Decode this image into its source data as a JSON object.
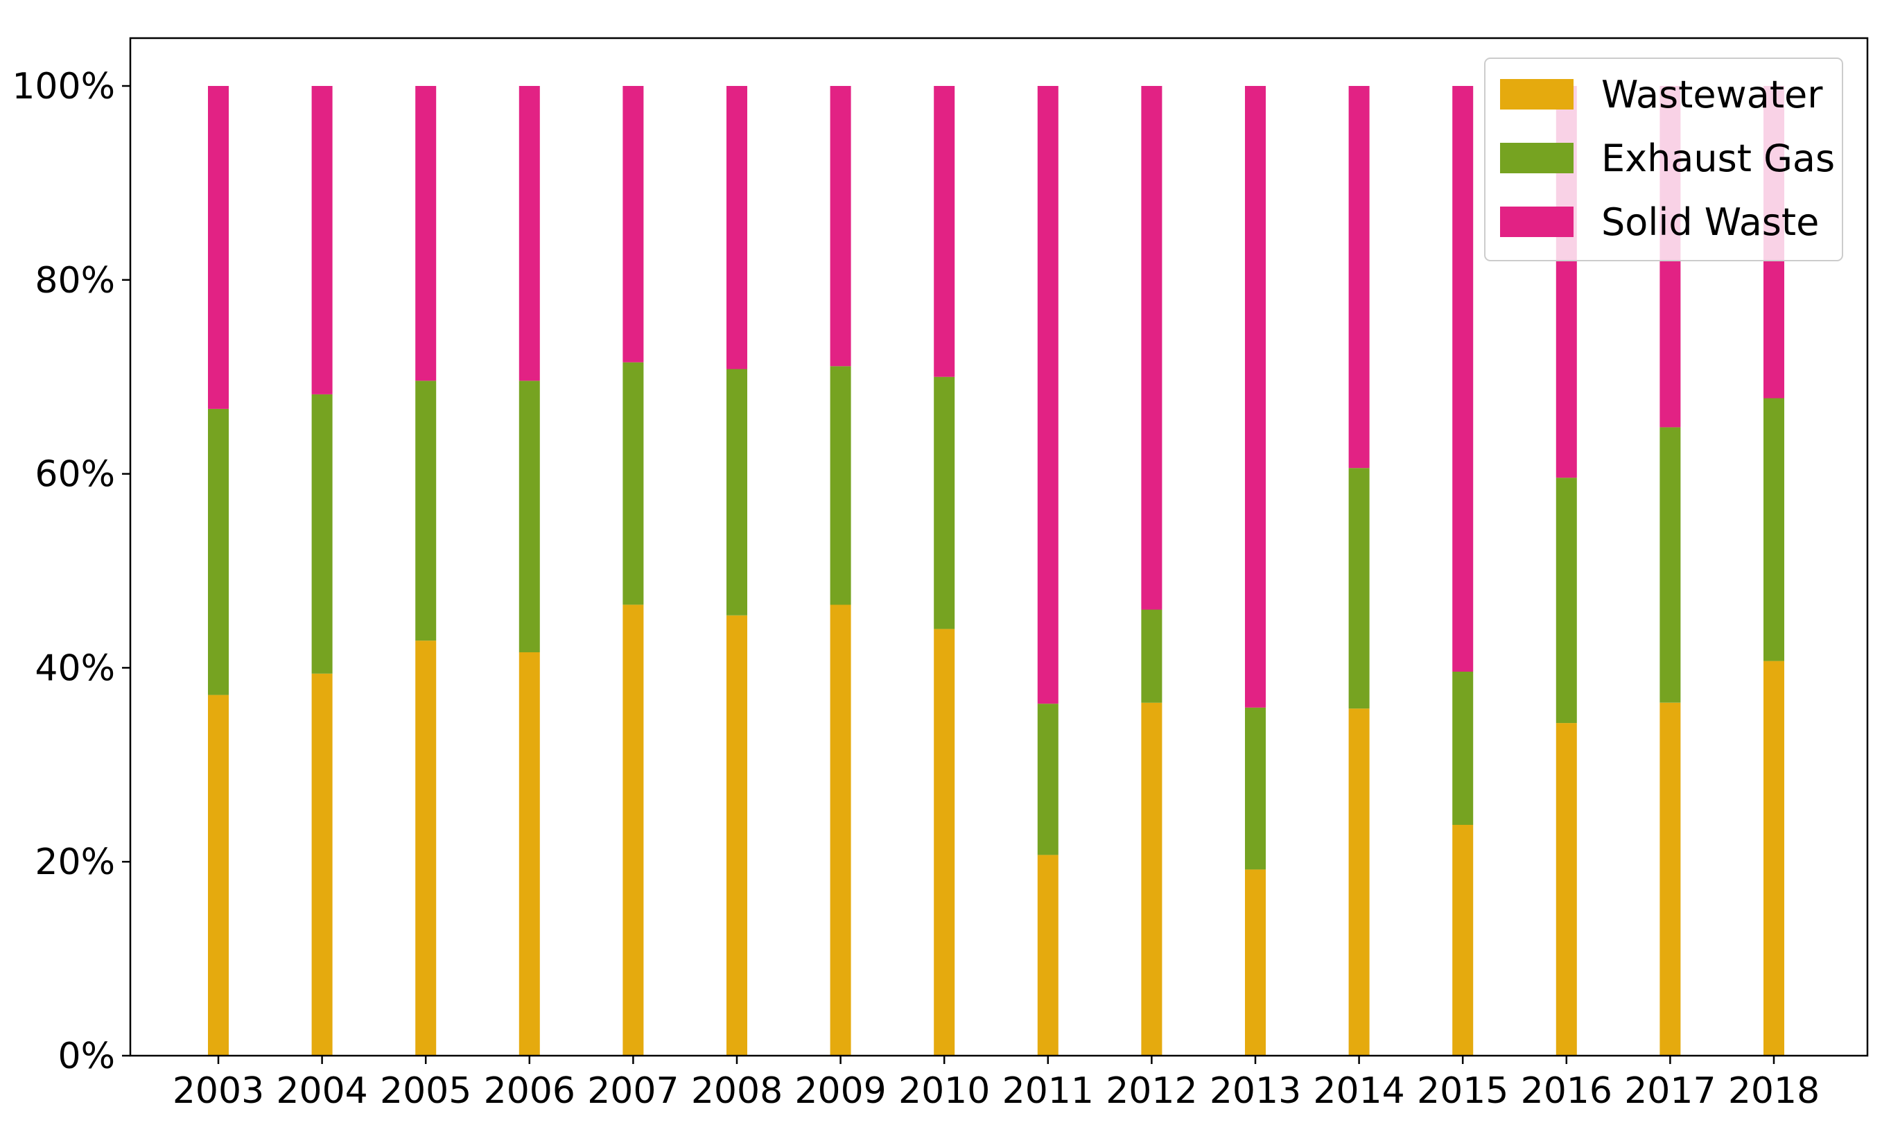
{
  "chart_data": {
    "type": "bar",
    "stacked": true,
    "normalized": true,
    "categories": [
      "2003",
      "2004",
      "2005",
      "2006",
      "2007",
      "2008",
      "2009",
      "2010",
      "2011",
      "2012",
      "2013",
      "2014",
      "2015",
      "2016",
      "2017",
      "2018"
    ],
    "series": [
      {
        "name": "Wastewater",
        "color": "#E5AA0E",
        "values": [
          37.2,
          39.4,
          42.8,
          41.6,
          46.5,
          45.4,
          46.5,
          44.0,
          20.7,
          36.4,
          19.2,
          35.8,
          23.8,
          34.3,
          36.4,
          40.7
        ]
      },
      {
        "name": "Exhaust Gas",
        "color": "#76A321",
        "values": [
          29.5,
          28.8,
          26.8,
          28.0,
          25.0,
          25.4,
          24.6,
          26.0,
          15.6,
          9.6,
          16.7,
          24.8,
          15.8,
          25.3,
          28.4,
          27.1
        ]
      },
      {
        "name": "Solid Waste",
        "color": "#E22284",
        "values": [
          33.3,
          31.8,
          30.4,
          30.4,
          28.5,
          29.2,
          28.9,
          30.0,
          63.7,
          54.0,
          64.1,
          39.4,
          60.4,
          40.4,
          35.2,
          32.2
        ]
      }
    ],
    "y_ticks": [
      "0%",
      "20%",
      "40%",
      "60%",
      "80%",
      "100%"
    ],
    "ylim": [
      0,
      100
    ],
    "legend_position": "top-right",
    "grid": false
  }
}
